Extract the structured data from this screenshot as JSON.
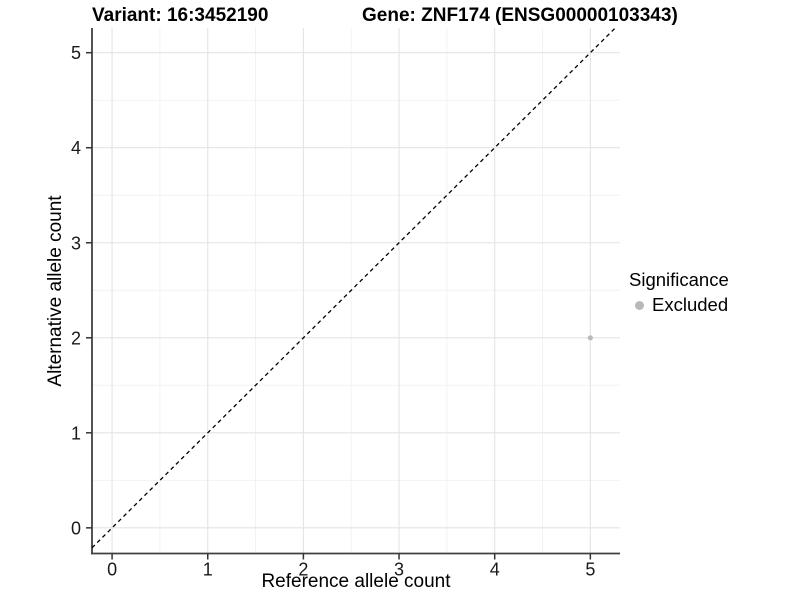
{
  "chart_data": {
    "type": "scatter",
    "title_left": "Variant: 16:3452190",
    "title_right": "Gene: ZNF174 (ENSG00000103343)",
    "xlabel": "Reference allele count",
    "ylabel": "Alternative allele count",
    "xlim": [
      -0.21,
      5.31
    ],
    "ylim": [
      -0.27,
      5.26
    ],
    "x_ticks": [
      0,
      1,
      2,
      3,
      4,
      5
    ],
    "y_ticks": [
      0,
      1,
      2,
      3,
      4,
      5
    ],
    "grid": {
      "major": true,
      "minor": true,
      "minor_step": 0.5
    },
    "reference_line": {
      "type": "identity",
      "style": "dashed",
      "color": "#000000"
    },
    "series": [
      {
        "name": "Excluded",
        "color": "#b9b9b9",
        "points": [
          {
            "x": 5,
            "y": 2
          }
        ]
      }
    ],
    "legend": {
      "title": "Significance",
      "position": "right",
      "items": [
        {
          "label": "Excluded",
          "color": "#b9b9b9"
        }
      ]
    },
    "style": {
      "background": "#ffffff",
      "grid_major_color": "#e4e4e4",
      "grid_minor_color": "#f2f2f2",
      "axis_line_color": "#404040",
      "tick_color": "#333333",
      "text_color": "#1a1a1a",
      "point_radius": 2.6,
      "tick_font_size": 18
    }
  }
}
